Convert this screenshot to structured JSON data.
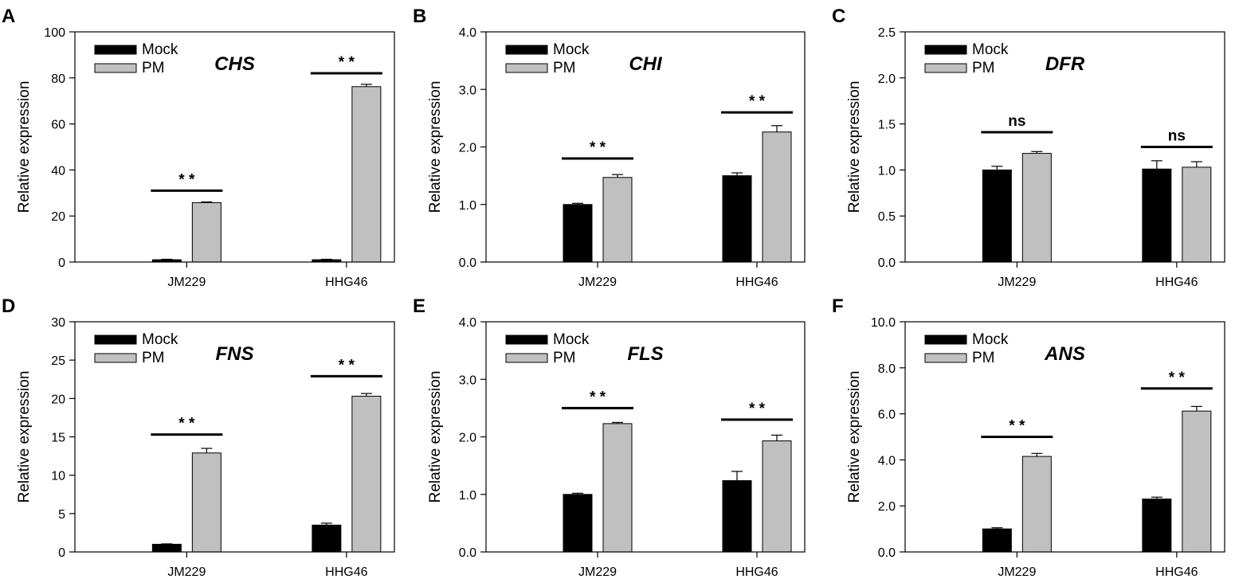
{
  "colors": {
    "mock": "#000000",
    "pm": "#c0c0c0",
    "axis": "#000000"
  },
  "chart_data": [
    {
      "type": "bar",
      "panel": "A",
      "title": "CHS",
      "ylabel": "Relative expression",
      "categories": [
        "JM229",
        "HHG46"
      ],
      "ylim": [
        0,
        100
      ],
      "yticks": [
        0,
        20,
        40,
        60,
        80,
        100
      ],
      "ytick_labels": [
        "0",
        "20",
        "40",
        "60",
        "80",
        "100"
      ],
      "series": [
        {
          "name": "Mock",
          "values": [
            1.0,
            1.0
          ],
          "errors": [
            0.2,
            0.2
          ]
        },
        {
          "name": "PM",
          "values": [
            25.8,
            76.2
          ],
          "errors": [
            0.3,
            1.0
          ]
        }
      ],
      "significance": [
        {
          "category": "JM229",
          "label": "* *",
          "y": 31
        },
        {
          "category": "HHG46",
          "label": "* *",
          "y": 82
        }
      ]
    },
    {
      "type": "bar",
      "panel": "B",
      "title": "CHI",
      "ylabel": "Relative expression",
      "categories": [
        "JM229",
        "HHG46"
      ],
      "ylim": [
        0,
        4
      ],
      "yticks": [
        0,
        1,
        2,
        3,
        4
      ],
      "ytick_labels": [
        "0.0",
        "1.0",
        "2.0",
        "3.0",
        "4.0"
      ],
      "series": [
        {
          "name": "Mock",
          "values": [
            1.0,
            1.5
          ],
          "errors": [
            0.02,
            0.05
          ]
        },
        {
          "name": "PM",
          "values": [
            1.47,
            2.26
          ],
          "errors": [
            0.05,
            0.11
          ]
        }
      ],
      "significance": [
        {
          "category": "JM229",
          "label": "* *",
          "y": 1.8
        },
        {
          "category": "HHG46",
          "label": "* *",
          "y": 2.6
        }
      ]
    },
    {
      "type": "bar",
      "panel": "C",
      "title": "DFR",
      "ylabel": "Relative expression",
      "categories": [
        "JM229",
        "HHG46"
      ],
      "ylim": [
        0,
        2.5
      ],
      "yticks": [
        0,
        0.5,
        1.0,
        1.5,
        2.0,
        2.5
      ],
      "ytick_labels": [
        "0.0",
        "0.5",
        "1.0",
        "1.5",
        "2.0",
        "2.5"
      ],
      "series": [
        {
          "name": "Mock",
          "values": [
            1.0,
            1.01
          ],
          "errors": [
            0.04,
            0.09
          ]
        },
        {
          "name": "PM",
          "values": [
            1.18,
            1.03
          ],
          "errors": [
            0.02,
            0.06
          ]
        }
      ],
      "significance": [
        {
          "category": "JM229",
          "label": "ns",
          "y": 1.41
        },
        {
          "category": "HHG46",
          "label": "ns",
          "y": 1.25
        }
      ]
    },
    {
      "type": "bar",
      "panel": "D",
      "title": "FNS",
      "ylabel": "Relative expression",
      "categories": [
        "JM229",
        "HHG46"
      ],
      "ylim": [
        0,
        30
      ],
      "yticks": [
        0,
        5,
        10,
        15,
        20,
        25,
        30
      ],
      "ytick_labels": [
        "0",
        "5",
        "10",
        "15",
        "20",
        "25",
        "30"
      ],
      "series": [
        {
          "name": "Mock",
          "values": [
            1.0,
            3.5
          ],
          "errors": [
            0.05,
            0.25
          ]
        },
        {
          "name": "PM",
          "values": [
            12.9,
            20.3
          ],
          "errors": [
            0.6,
            0.35
          ]
        }
      ],
      "significance": [
        {
          "category": "JM229",
          "label": "* *",
          "y": 15.3
        },
        {
          "category": "HHG46",
          "label": "* *",
          "y": 22.9
        }
      ]
    },
    {
      "type": "bar",
      "panel": "E",
      "title": "FLS",
      "ylabel": "Relative expression",
      "categories": [
        "JM229",
        "HHG46"
      ],
      "ylim": [
        0,
        4
      ],
      "yticks": [
        0,
        1,
        2,
        3,
        4
      ],
      "ytick_labels": [
        "0.0",
        "1.0",
        "2.0",
        "3.0",
        "4.0"
      ],
      "series": [
        {
          "name": "Mock",
          "values": [
            1.0,
            1.24
          ],
          "errors": [
            0.02,
            0.16
          ]
        },
        {
          "name": "PM",
          "values": [
            2.23,
            1.93
          ],
          "errors": [
            0.02,
            0.1
          ]
        }
      ],
      "significance": [
        {
          "category": "JM229",
          "label": "* *",
          "y": 2.5
        },
        {
          "category": "HHG46",
          "label": "* *",
          "y": 2.3
        }
      ]
    },
    {
      "type": "bar",
      "panel": "F",
      "title": "ANS",
      "ylabel": "Relative expression",
      "categories": [
        "JM229",
        "HHG46"
      ],
      "ylim": [
        0,
        10
      ],
      "yticks": [
        0,
        2,
        4,
        6,
        8,
        10
      ],
      "ytick_labels": [
        "0.0",
        "2.0",
        "4.0",
        "6.0",
        "8.0",
        "10.0"
      ],
      "series": [
        {
          "name": "Mock",
          "values": [
            1.0,
            2.3
          ],
          "errors": [
            0.05,
            0.08
          ]
        },
        {
          "name": "PM",
          "values": [
            4.15,
            6.12
          ],
          "errors": [
            0.13,
            0.2
          ]
        }
      ],
      "significance": [
        {
          "category": "JM229",
          "label": "* *",
          "y": 5.0
        },
        {
          "category": "HHG46",
          "label": "* *",
          "y": 7.1
        }
      ]
    }
  ]
}
